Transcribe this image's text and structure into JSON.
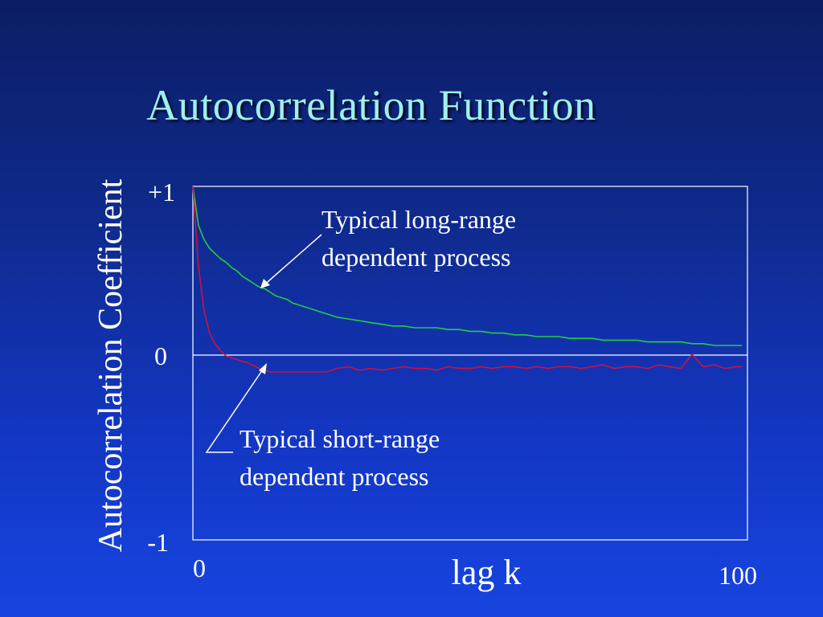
{
  "slide": {
    "title": "Autocorrelation Function"
  },
  "chart_data": {
    "type": "line",
    "title": "Autocorrelation Function",
    "xlabel": "lag k",
    "ylabel": "Autocorrelation Coefficient",
    "xlim": [
      0,
      100
    ],
    "ylim": [
      -1,
      1
    ],
    "x_tick_labels": [
      "0",
      "100"
    ],
    "y_tick_labels": [
      "+1",
      "0",
      "-1"
    ],
    "grid": false,
    "series": [
      {
        "color": "#22cc44",
        "x": [
          0,
          1,
          2,
          3,
          4,
          5,
          6,
          7,
          8,
          9,
          10,
          11,
          12,
          13,
          14,
          15,
          16,
          17,
          18,
          19,
          20,
          22,
          24,
          26,
          28,
          30,
          32,
          34,
          36,
          38,
          40,
          42,
          44,
          46,
          48,
          50,
          52,
          54,
          56,
          58,
          60,
          62,
          64,
          66,
          68,
          70,
          72,
          74,
          76,
          78,
          80,
          82,
          84,
          86,
          88,
          90,
          92,
          94,
          96,
          98,
          99
        ],
        "values": [
          1.0,
          0.78,
          0.7,
          0.65,
          0.62,
          0.59,
          0.57,
          0.54,
          0.52,
          0.49,
          0.47,
          0.45,
          0.43,
          0.42,
          0.4,
          0.38,
          0.37,
          0.36,
          0.34,
          0.33,
          0.32,
          0.3,
          0.28,
          0.26,
          0.25,
          0.24,
          0.23,
          0.22,
          0.21,
          0.21,
          0.2,
          0.2,
          0.2,
          0.19,
          0.19,
          0.18,
          0.18,
          0.17,
          0.17,
          0.16,
          0.16,
          0.15,
          0.15,
          0.15,
          0.14,
          0.14,
          0.14,
          0.13,
          0.13,
          0.13,
          0.13,
          0.12,
          0.12,
          0.12,
          0.12,
          0.11,
          0.11,
          0.1,
          0.1,
          0.1,
          0.1
        ]
      },
      {
        "color": "#d01040",
        "x": [
          0,
          1,
          2,
          3,
          4,
          5,
          6,
          7,
          8,
          9,
          10,
          12,
          14,
          16,
          18,
          20,
          22,
          24,
          26,
          28,
          30,
          32,
          34,
          36,
          38,
          40,
          42,
          44,
          46,
          48,
          50,
          52,
          54,
          56,
          58,
          60,
          62,
          64,
          66,
          68,
          70,
          72,
          74,
          76,
          78,
          80,
          82,
          84,
          86,
          88,
          90,
          92,
          94,
          96,
          98,
          99
        ],
        "values": [
          1.0,
          0.55,
          0.3,
          0.17,
          0.11,
          0.07,
          0.04,
          0.03,
          0.02,
          0.01,
          0.0,
          -0.03,
          -0.05,
          -0.05,
          -0.05,
          -0.05,
          -0.05,
          -0.05,
          -0.03,
          -0.02,
          -0.04,
          -0.03,
          -0.04,
          -0.03,
          -0.02,
          -0.03,
          -0.03,
          -0.04,
          -0.02,
          -0.03,
          -0.03,
          -0.02,
          -0.03,
          -0.02,
          -0.02,
          -0.03,
          -0.02,
          -0.03,
          -0.02,
          -0.02,
          -0.03,
          -0.02,
          -0.01,
          -0.03,
          -0.02,
          -0.02,
          -0.03,
          -0.01,
          -0.02,
          -0.03,
          0.05,
          -0.02,
          -0.01,
          -0.03,
          -0.02,
          -0.02
        ]
      }
    ],
    "annotations": [
      {
        "text": [
          "Typical long-range",
          "dependent process"
        ],
        "target_series": 0,
        "target_x": 13
      },
      {
        "text": [
          "Typical short-range",
          "dependent process"
        ],
        "target_series": 1,
        "target_x": 13
      }
    ]
  }
}
